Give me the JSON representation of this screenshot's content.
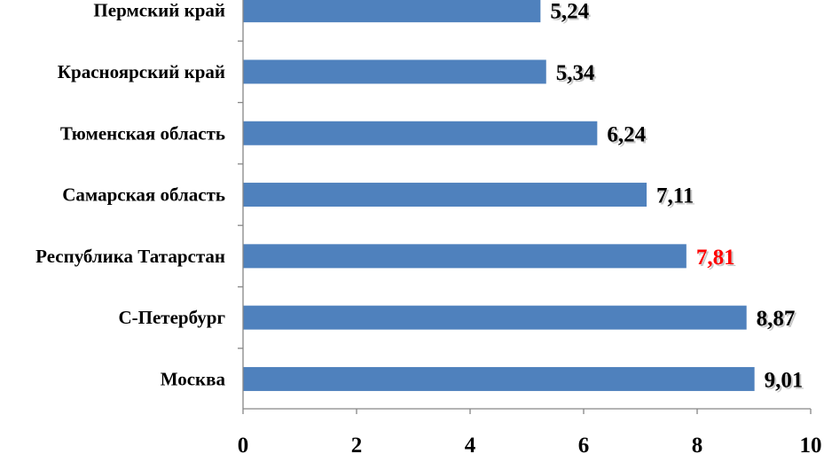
{
  "chart_data": {
    "type": "bar",
    "orientation": "horizontal",
    "categories": [
      "Пермский край",
      "Красноярский край",
      "Тюменская область",
      "Самарская область",
      "Республика Татарстан",
      "С-Петербург",
      "Москва"
    ],
    "values": [
      5.24,
      5.34,
      6.24,
      7.11,
      7.81,
      8.87,
      9.01
    ],
    "value_labels": [
      "5,24",
      "5,34",
      "6,24",
      "7,11",
      "7,81",
      "8,87",
      "9,01"
    ],
    "highlight_index": 4,
    "xlim": [
      0,
      10
    ],
    "xticks": [
      0,
      2,
      4,
      6,
      8,
      10
    ],
    "xtick_labels": [
      "0",
      "2",
      "4",
      "6",
      "8",
      "10"
    ],
    "title": "",
    "xlabel": "",
    "ylabel": "",
    "grid": false,
    "legend": "none",
    "colors": {
      "bar": "#4F81BD",
      "value_label": "#000000",
      "highlight_label": "#FF0000",
      "axis": "#868686"
    }
  }
}
